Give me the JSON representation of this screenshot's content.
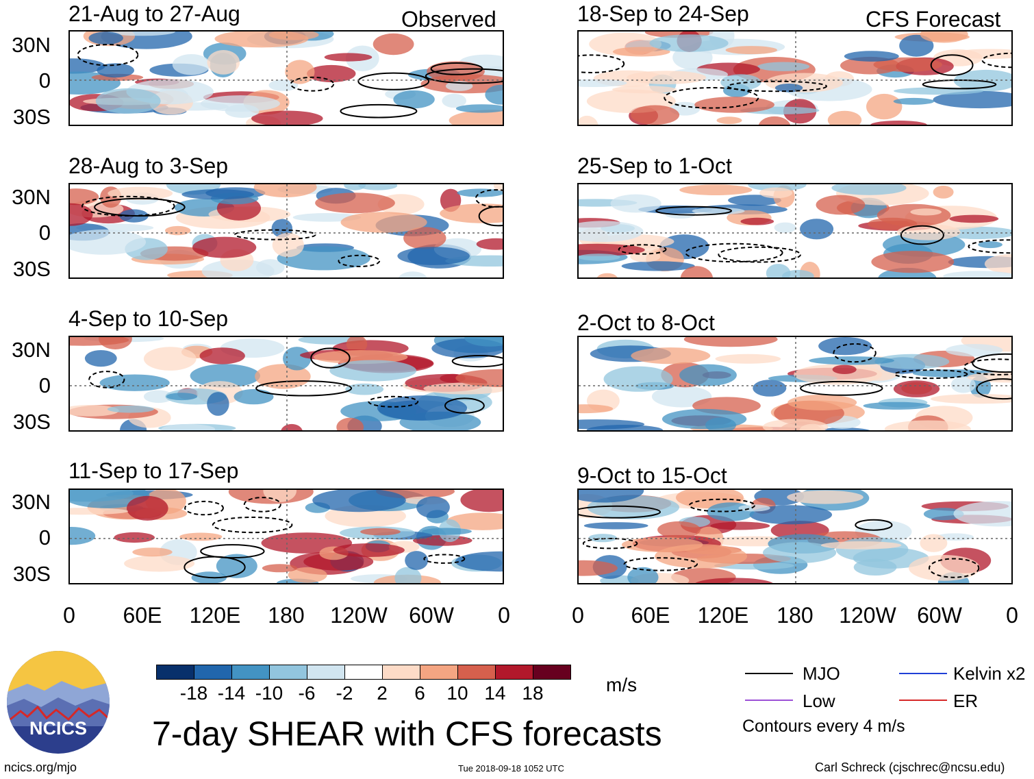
{
  "observed_label": "Observed",
  "forecast_label": "CFS Forecast",
  "panels": {
    "left": [
      "21-Aug to 27-Aug",
      "28-Aug to 3-Sep",
      "4-Sep to 10-Sep",
      "11-Sep to 17-Sep"
    ],
    "right": [
      "18-Sep to 24-Sep",
      "25-Sep to 1-Oct",
      "2-Oct to 8-Oct",
      "9-Oct to 15-Oct"
    ]
  },
  "lat_labels": [
    "30N",
    "0",
    "30S"
  ],
  "lon_labels": [
    "0",
    "60E",
    "120E",
    "180",
    "120W",
    "60W",
    "0"
  ],
  "colorbar": {
    "colors": [
      "#08306b",
      "#2166ac",
      "#4393c3",
      "#92c5de",
      "#d1e5f0",
      "#ffffff",
      "#fddbc7",
      "#f4a582",
      "#d6604d",
      "#b2182b",
      "#67001f"
    ],
    "labels": [
      "-18",
      "-14",
      "-10",
      "-6",
      "-2",
      "2",
      "6",
      "10",
      "14",
      "18"
    ],
    "units": "m/s"
  },
  "legend": {
    "mjo": "MJO",
    "kelvin": "Kelvin x2",
    "low": "Low",
    "er": "ER",
    "contours": "Contours every 4 m/s"
  },
  "legend_colors": {
    "mjo": "#000000",
    "kelvin": "#1f3fd6",
    "low": "#9b4fd6",
    "er": "#d62828"
  },
  "logo_text": "NCICS",
  "main_title": "7-day SHEAR with CFS forecasts",
  "footer": {
    "url": "ncics.org/mjo",
    "timestamp": "Tue 2018-09-18 1052 UTC",
    "author": "Carl Schreck (cjschrec@ncsu.edu)"
  }
}
